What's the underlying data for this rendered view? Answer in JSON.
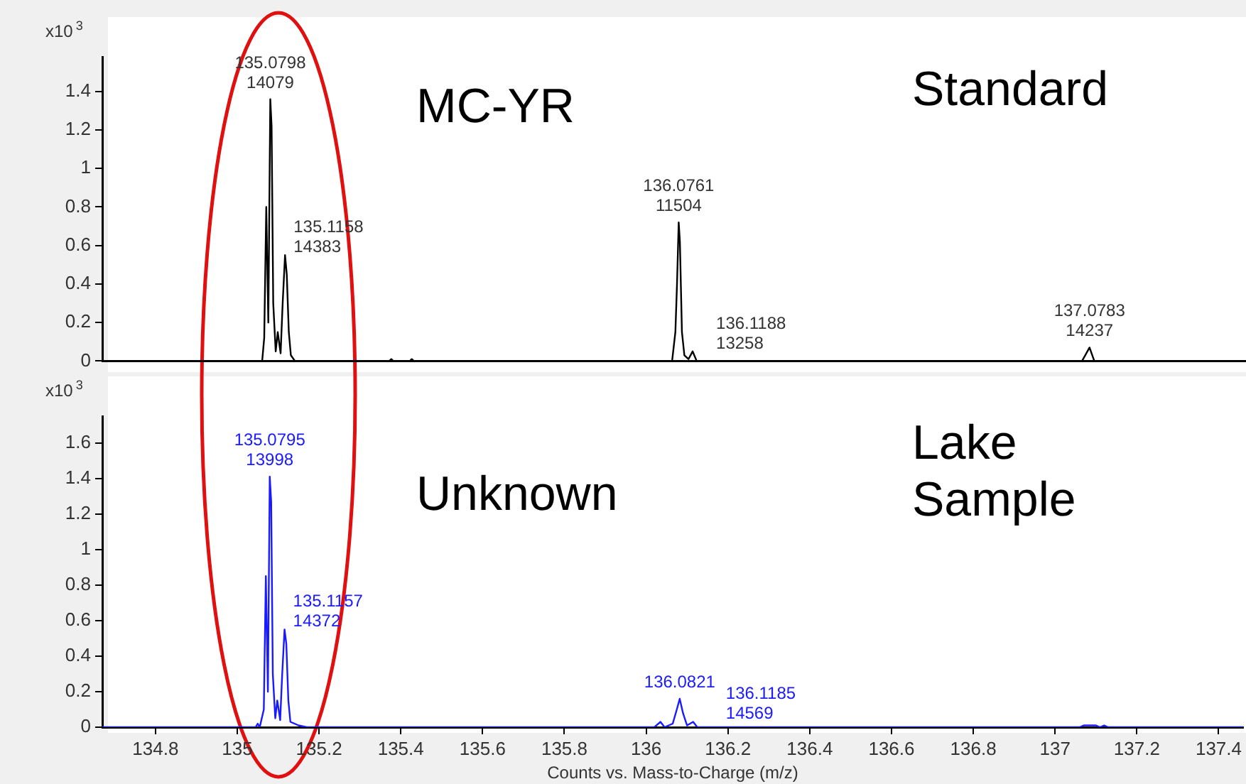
{
  "chart_data": [
    {
      "type": "line",
      "ylabel": "x10$^{3}$",
      "xlim": [
        134.67,
        137.46
      ],
      "ylim": [
        0,
        1.58
      ],
      "yticks": [
        0,
        0.2,
        0.4,
        0.6,
        0.8,
        1,
        1.2,
        1.4
      ],
      "tick_labels": "y",
      "grid": false,
      "legend": false,
      "marker": "none",
      "line_style": "solid",
      "series": [
        {
          "color": "#000000",
          "x": [
            134.67,
            135.06,
            135.065,
            135.07,
            135.075,
            135.0798,
            135.083,
            135.087,
            135.093,
            135.098,
            135.105,
            135.11,
            135.1158,
            135.12,
            135.125,
            135.13,
            135.14,
            135.37,
            135.375,
            135.38,
            135.42,
            135.425,
            135.43,
            136.06,
            136.068,
            136.072,
            136.0761,
            136.079,
            136.084,
            136.09,
            136.1,
            136.11,
            136.12,
            137.06,
            137.0783,
            137.09,
            137.46
          ],
          "values": [
            0,
            0,
            0.12,
            0.8,
            0.2,
            1.36,
            1.22,
            0.3,
            0.05,
            0.15,
            0.04,
            0.3,
            0.55,
            0.45,
            0.15,
            0.03,
            0,
            0,
            0.01,
            0,
            0,
            0.01,
            0,
            0,
            0.15,
            0.4,
            0.72,
            0.62,
            0.15,
            0.03,
            0.01,
            0.05,
            0,
            0,
            0.07,
            0,
            0
          ]
        }
      ],
      "annotations": [
        "MC-YR",
        "Standard",
        {
          "text": "135.0798\n14079",
          "x": 135.0798,
          "y": 1.36
        },
        {
          "text": "135.1158\n14383",
          "x": 135.1158,
          "y": 0.55
        },
        {
          "text": "136.0761\n11504",
          "x": 136.0761,
          "y": 0.72
        },
        {
          "text": "136.1188\n13258",
          "x": 136.1188,
          "y": 0.05
        },
        {
          "text": "137.0783\n14237",
          "x": 137.0783,
          "y": 0.07
        }
      ]
    },
    {
      "type": "line",
      "ylabel": "x10$^{3}$",
      "xlabel": "Counts vs. Mass-to-Charge (m/z)",
      "xlim": [
        134.67,
        137.46
      ],
      "xticks": [
        134.8,
        135,
        135.2,
        135.4,
        135.6,
        135.8,
        136,
        136.2,
        136.4,
        136.6,
        136.8,
        137,
        137.2,
        137.4
      ],
      "ylim": [
        0,
        1.75
      ],
      "yticks": [
        0,
        0.2,
        0.4,
        0.6,
        0.8,
        1,
        1.2,
        1.4,
        1.6
      ],
      "grid": false,
      "legend": false,
      "marker": "none",
      "line_style": "solid",
      "series": [
        {
          "color": "#1a1aff",
          "x": [
            134.67,
            135.045,
            135.05,
            135.055,
            135.065,
            135.07,
            135.075,
            135.0795,
            135.083,
            135.087,
            135.093,
            135.098,
            135.105,
            135.11,
            135.1157,
            135.12,
            135.125,
            135.13,
            135.15,
            135.17,
            136.02,
            136.035,
            136.045,
            136.065,
            136.075,
            136.0821,
            136.09,
            136.1,
            136.115,
            136.125,
            137.06,
            137.07,
            137.1,
            137.11,
            137.12,
            137.13,
            137.46
          ],
          "values": [
            0,
            0,
            0.02,
            0,
            0.1,
            0.85,
            0.2,
            1.41,
            1.27,
            0.3,
            0.05,
            0.15,
            0.04,
            0.3,
            0.55,
            0.47,
            0.15,
            0.03,
            0.01,
            0,
            0,
            0.03,
            0,
            0.02,
            0.1,
            0.16,
            0.08,
            0.01,
            0.03,
            0,
            0,
            0.01,
            0.01,
            0,
            0.01,
            0,
            0
          ]
        }
      ],
      "annotations": [
        "Unknown",
        "Lake\nSample",
        {
          "text": "135.0795\n13998",
          "x": 135.0795,
          "y": 1.41
        },
        {
          "text": "135.1157\n14372",
          "x": 135.1157,
          "y": 0.55
        },
        {
          "text": "136.0821",
          "x": 136.0821,
          "y": 0.16
        },
        {
          "text": "136.1185\n14569",
          "x": 136.1185,
          "y": 0.03
        }
      ]
    }
  ]
}
